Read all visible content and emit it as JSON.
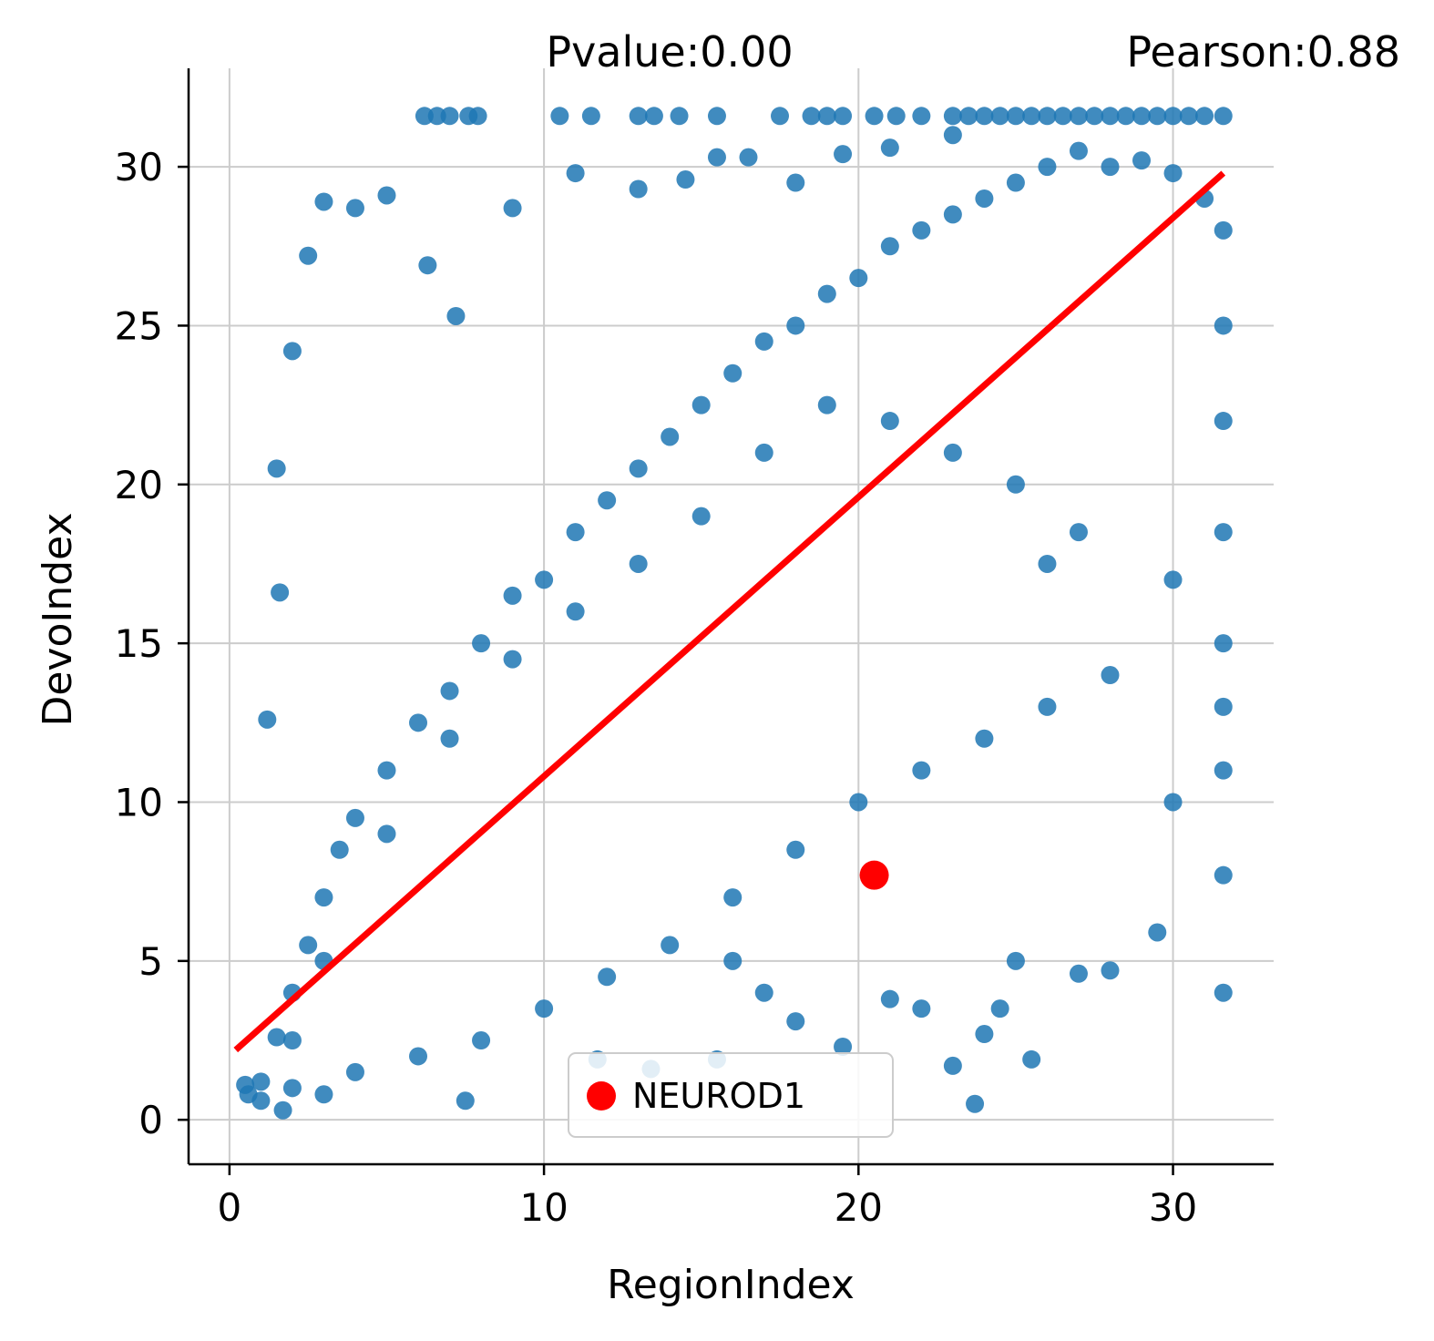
{
  "chart_data": {
    "type": "scatter",
    "xlabel": "RegionIndex",
    "ylabel": "DevoIndex",
    "annotations": {
      "pvalue": "Pvalue:0.00",
      "pearson": "Pearson:0.88"
    },
    "xlim": [
      -1.3,
      33.2
    ],
    "ylim": [
      -1.4,
      33.1
    ],
    "x_ticks": [
      0,
      10,
      20,
      30
    ],
    "y_ticks": [
      0,
      5,
      10,
      15,
      20,
      25,
      30
    ],
    "grid": true,
    "legend_position": "lower-center",
    "colors": {
      "points": "#1f77b4",
      "fit": "#ff0000",
      "highlight": "#ff0000",
      "grid": "#cccccc",
      "axis": "#000000"
    },
    "series": [
      {
        "name": "",
        "kind": "scatter",
        "color": "#1f77b4",
        "points": [
          [
            0.6,
            0.8
          ],
          [
            1.0,
            1.2
          ],
          [
            1.5,
            2.6
          ],
          [
            2.0,
            4.0
          ],
          [
            2.5,
            5.5
          ],
          [
            3.0,
            7.0
          ],
          [
            3.5,
            8.5
          ],
          [
            4.0,
            9.5
          ],
          [
            5.0,
            11.0
          ],
          [
            6.0,
            12.5
          ],
          [
            7.0,
            13.5
          ],
          [
            8.0,
            15.0
          ],
          [
            9.0,
            16.5
          ],
          [
            10.0,
            17.0
          ],
          [
            11.0,
            18.5
          ],
          [
            12.0,
            19.5
          ],
          [
            13.0,
            20.5
          ],
          [
            14.0,
            21.5
          ],
          [
            15.0,
            22.5
          ],
          [
            16.0,
            23.5
          ],
          [
            17.0,
            24.5
          ],
          [
            18.0,
            25.0
          ],
          [
            19.0,
            26.0
          ],
          [
            20.0,
            26.5
          ],
          [
            21.0,
            27.5
          ],
          [
            22.0,
            28.0
          ],
          [
            23.0,
            28.5
          ],
          [
            24.0,
            29.0
          ],
          [
            25.0,
            29.5
          ],
          [
            26.0,
            30.0
          ],
          [
            27.0,
            30.5
          ],
          [
            28.0,
            30.0
          ],
          [
            29.0,
            30.2
          ],
          [
            30.0,
            29.8
          ],
          [
            31.0,
            29.0
          ],
          [
            31.6,
            28.0
          ],
          [
            31.6,
            25.0
          ],
          [
            31.6,
            22.0
          ],
          [
            31.6,
            18.5
          ],
          [
            31.6,
            15.0
          ],
          [
            31.6,
            13.0
          ],
          [
            31.6,
            11.0
          ],
          [
            31.6,
            7.7
          ],
          [
            31.6,
            4.0
          ],
          [
            30.0,
            10.0
          ],
          [
            29.5,
            5.9
          ],
          [
            28.0,
            4.7
          ],
          [
            27.0,
            4.6
          ],
          [
            25.0,
            5.0
          ],
          [
            24.5,
            3.5
          ],
          [
            23.7,
            0.5
          ],
          [
            23.0,
            1.7
          ],
          [
            24.0,
            2.7
          ],
          [
            25.5,
            1.9
          ],
          [
            22.0,
            3.5
          ],
          [
            21.0,
            3.8
          ],
          [
            19.5,
            2.3
          ],
          [
            18.0,
            3.1
          ],
          [
            17.0,
            4.0
          ],
          [
            16.0,
            5.0
          ],
          [
            15.5,
            1.9
          ],
          [
            13.4,
            1.6
          ],
          [
            11.7,
            1.9
          ],
          [
            7.5,
            0.6
          ],
          [
            3.0,
            0.8
          ],
          [
            1.7,
            0.3
          ],
          [
            1.0,
            0.6
          ],
          [
            0.5,
            1.1
          ],
          [
            2.0,
            1.0
          ],
          [
            4.0,
            1.5
          ],
          [
            6.0,
            2.0
          ],
          [
            8.0,
            2.5
          ],
          [
            10.0,
            3.5
          ],
          [
            12.0,
            4.5
          ],
          [
            14.0,
            5.5
          ],
          [
            16.0,
            7.0
          ],
          [
            18.0,
            8.5
          ],
          [
            20.0,
            10.0
          ],
          [
            22.0,
            11.0
          ],
          [
            24.0,
            12.0
          ],
          [
            26.0,
            13.0
          ],
          [
            28.0,
            14.0
          ],
          [
            30.0,
            17.0
          ],
          [
            26.0,
            17.5
          ],
          [
            27.0,
            18.5
          ],
          [
            25.0,
            20.0
          ],
          [
            23.0,
            21.0
          ],
          [
            21.0,
            22.0
          ],
          [
            19.0,
            22.5
          ],
          [
            17.0,
            21.0
          ],
          [
            15.0,
            19.0
          ],
          [
            13.0,
            17.5
          ],
          [
            11.0,
            16.0
          ],
          [
            9.0,
            14.5
          ],
          [
            7.0,
            12.0
          ],
          [
            5.0,
            9.0
          ],
          [
            3.0,
            5.0
          ],
          [
            2.0,
            2.5
          ],
          [
            1.2,
            12.6
          ],
          [
            1.6,
            16.6
          ],
          [
            1.5,
            20.5
          ],
          [
            2.0,
            24.2
          ],
          [
            2.5,
            27.2
          ],
          [
            3.0,
            28.9
          ],
          [
            4.0,
            28.7
          ],
          [
            5.0,
            29.1
          ],
          [
            6.3,
            26.9
          ],
          [
            7.2,
            25.3
          ],
          [
            9.0,
            28.7
          ],
          [
            11.0,
            29.8
          ],
          [
            13.0,
            29.3
          ],
          [
            14.5,
            29.6
          ],
          [
            15.5,
            30.3
          ],
          [
            16.5,
            30.3
          ],
          [
            18.0,
            29.5
          ],
          [
            19.5,
            30.4
          ],
          [
            21.0,
            30.6
          ],
          [
            23.0,
            31.0
          ],
          [
            6.2,
            31.6
          ],
          [
            6.6,
            31.6
          ],
          [
            7.0,
            31.6
          ],
          [
            7.6,
            31.6
          ],
          [
            7.9,
            31.6
          ],
          [
            10.5,
            31.6
          ],
          [
            11.5,
            31.6
          ],
          [
            13.0,
            31.6
          ],
          [
            13.5,
            31.6
          ],
          [
            14.3,
            31.6
          ],
          [
            15.5,
            31.6
          ],
          [
            17.5,
            31.6
          ],
          [
            18.5,
            31.6
          ],
          [
            19.0,
            31.6
          ],
          [
            19.5,
            31.6
          ],
          [
            20.5,
            31.6
          ],
          [
            21.2,
            31.6
          ],
          [
            22.0,
            31.6
          ],
          [
            23.0,
            31.6
          ],
          [
            23.5,
            31.6
          ],
          [
            24.0,
            31.6
          ],
          [
            24.5,
            31.6
          ],
          [
            25.0,
            31.6
          ],
          [
            25.5,
            31.6
          ],
          [
            26.0,
            31.6
          ],
          [
            26.5,
            31.6
          ],
          [
            27.0,
            31.6
          ],
          [
            27.5,
            31.6
          ],
          [
            28.0,
            31.6
          ],
          [
            28.5,
            31.6
          ],
          [
            29.0,
            31.6
          ],
          [
            29.5,
            31.6
          ],
          [
            30.0,
            31.6
          ],
          [
            30.5,
            31.6
          ],
          [
            31.0,
            31.6
          ],
          [
            31.6,
            31.6
          ]
        ]
      },
      {
        "name": "",
        "kind": "line",
        "color": "#ff0000",
        "points": [
          [
            0.2,
            2.2
          ],
          [
            31.6,
            29.8
          ]
        ]
      },
      {
        "name": "NEUROD1",
        "kind": "scatter",
        "color": "#ff0000",
        "points": [
          [
            20.5,
            7.7
          ]
        ]
      }
    ]
  }
}
